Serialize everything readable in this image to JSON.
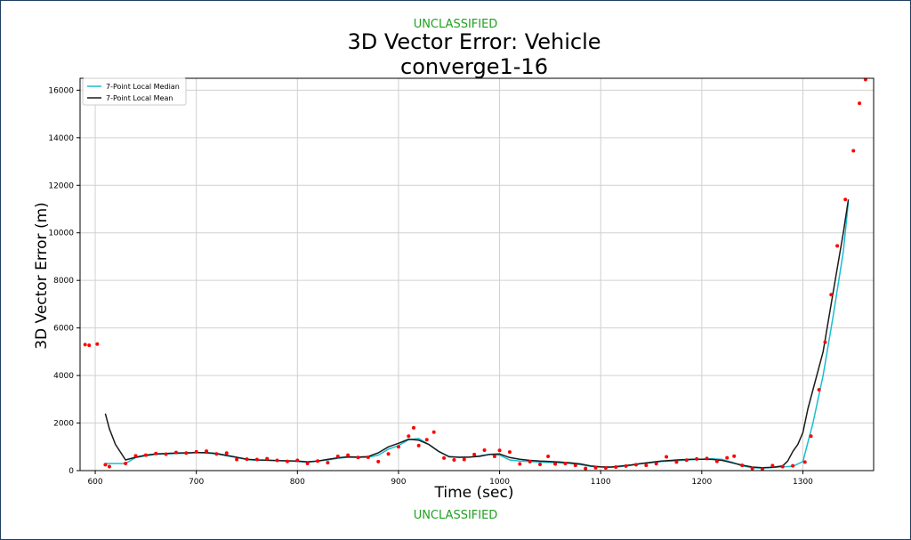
{
  "classification": {
    "top": "UNCLASSIFIED",
    "bottom": "UNCLASSIFIED"
  },
  "chart_data": {
    "type": "line",
    "title": "3D Vector Error: Vehicle",
    "subtitle": "converge1-16",
    "xlabel": "Time (sec)",
    "ylabel": "3D Vector Error (m)",
    "xlim": [
      585,
      1370
    ],
    "ylim": [
      0,
      16500
    ],
    "xticks": [
      600,
      700,
      800,
      900,
      1000,
      1100,
      1200,
      1300
    ],
    "yticks": [
      0,
      2000,
      4000,
      6000,
      8000,
      10000,
      12000,
      14000,
      16000
    ],
    "grid": true,
    "legend_position": "top-left",
    "series": [
      {
        "name": "7-Point Local Median",
        "kind": "line",
        "color": "#17becf",
        "x": [
          610,
          620,
          630,
          640,
          650,
          660,
          670,
          680,
          690,
          700,
          710,
          720,
          730,
          740,
          750,
          760,
          770,
          780,
          790,
          800,
          810,
          820,
          830,
          840,
          850,
          860,
          870,
          880,
          890,
          900,
          910,
          920,
          930,
          940,
          950,
          960,
          970,
          980,
          990,
          1000,
          1010,
          1020,
          1030,
          1040,
          1050,
          1060,
          1070,
          1080,
          1090,
          1100,
          1110,
          1120,
          1130,
          1140,
          1150,
          1160,
          1170,
          1180,
          1190,
          1200,
          1210,
          1220,
          1230,
          1240,
          1250,
          1260,
          1270,
          1280,
          1290,
          1300,
          1310,
          1320,
          1330,
          1340,
          1345
        ],
        "y": [
          300,
          300,
          300,
          550,
          620,
          680,
          700,
          720,
          730,
          760,
          740,
          700,
          620,
          550,
          460,
          440,
          430,
          420,
          410,
          380,
          350,
          400,
          450,
          520,
          560,
          550,
          560,
          650,
          900,
          1050,
          1300,
          1350,
          1100,
          800,
          600,
          560,
          560,
          620,
          680,
          650,
          450,
          400,
          380,
          360,
          340,
          320,
          300,
          250,
          180,
          150,
          140,
          170,
          220,
          290,
          330,
          380,
          400,
          430,
          460,
          480,
          500,
          470,
          350,
          200,
          120,
          110,
          130,
          160,
          180,
          380,
          2000,
          4000,
          6500,
          9200,
          11300
        ]
      },
      {
        "name": "7-Point Local Mean",
        "kind": "line",
        "color": "#1a1a1a",
        "x": [
          610,
          614,
          620,
          630,
          640,
          650,
          660,
          670,
          680,
          690,
          700,
          710,
          720,
          730,
          740,
          750,
          760,
          770,
          780,
          790,
          800,
          810,
          820,
          830,
          840,
          850,
          860,
          870,
          880,
          890,
          900,
          910,
          920,
          930,
          940,
          950,
          960,
          970,
          980,
          990,
          1000,
          1010,
          1020,
          1030,
          1040,
          1050,
          1060,
          1070,
          1080,
          1090,
          1100,
          1110,
          1120,
          1130,
          1140,
          1150,
          1160,
          1170,
          1180,
          1190,
          1200,
          1210,
          1220,
          1230,
          1240,
          1250,
          1260,
          1270,
          1280,
          1285,
          1290,
          1295,
          1300,
          1305,
          1320,
          1330,
          1340,
          1345
        ],
        "y": [
          2400,
          1750,
          1100,
          450,
          560,
          650,
          700,
          720,
          740,
          750,
          760,
          760,
          720,
          640,
          560,
          480,
          450,
          440,
          420,
          410,
          400,
          370,
          400,
          470,
          540,
          580,
          570,
          590,
          750,
          1000,
          1150,
          1320,
          1280,
          1100,
          800,
          580,
          560,
          570,
          600,
          680,
          700,
          550,
          480,
          430,
          400,
          380,
          360,
          330,
          280,
          200,
          160,
          150,
          190,
          240,
          300,
          350,
          400,
          430,
          460,
          480,
          480,
          470,
          430,
          330,
          230,
          150,
          120,
          140,
          200,
          400,
          800,
          1100,
          1600,
          2600,
          5000,
          7500,
          10000,
          11400
        ]
      },
      {
        "name": "",
        "kind": "scatter",
        "color": "#ff0000",
        "x": [
          590,
          594,
          602,
          610,
          614,
          630,
          640,
          650,
          660,
          670,
          680,
          690,
          700,
          710,
          720,
          730,
          740,
          750,
          760,
          770,
          780,
          790,
          800,
          810,
          820,
          830,
          840,
          850,
          860,
          870,
          880,
          890,
          900,
          910,
          915,
          920,
          928,
          935,
          945,
          955,
          965,
          975,
          985,
          995,
          1000,
          1010,
          1020,
          1030,
          1040,
          1048,
          1055,
          1065,
          1075,
          1085,
          1095,
          1105,
          1115,
          1125,
          1135,
          1145,
          1155,
          1165,
          1175,
          1185,
          1195,
          1205,
          1215,
          1225,
          1232,
          1240,
          1250,
          1260,
          1270,
          1280,
          1290,
          1302,
          1308,
          1316,
          1322,
          1328,
          1334,
          1342,
          1350,
          1356,
          1362
        ],
        "y": [
          5300,
          5270,
          5320,
          250,
          170,
          300,
          620,
          650,
          720,
          690,
          760,
          740,
          790,
          820,
          700,
          740,
          470,
          480,
          470,
          500,
          430,
          390,
          430,
          300,
          400,
          330,
          600,
          650,
          550,
          560,
          380,
          700,
          1000,
          1450,
          1800,
          1050,
          1300,
          1620,
          530,
          450,
          470,
          680,
          860,
          600,
          850,
          780,
          280,
          380,
          260,
          600,
          280,
          300,
          220,
          90,
          120,
          110,
          150,
          190,
          250,
          220,
          290,
          580,
          360,
          440,
          490,
          510,
          390,
          540,
          610,
          220,
          90,
          60,
          210,
          170,
          200,
          360,
          1450,
          3400,
          5400,
          7400,
          9450,
          11400,
          13450,
          15450,
          16450
        ]
      }
    ]
  }
}
